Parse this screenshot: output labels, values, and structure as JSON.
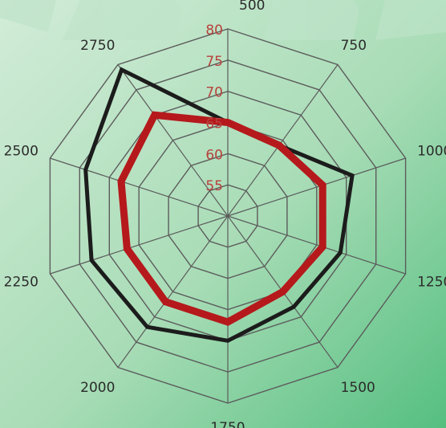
{
  "chart_data": {
    "type": "radar",
    "categories": [
      "500",
      "750",
      "1000",
      "1250",
      "1500",
      "1750",
      "2000",
      "2250",
      "2500",
      "2750"
    ],
    "rlim": [
      50,
      80
    ],
    "ring_ticks": [
      55,
      60,
      65,
      70,
      75,
      80
    ],
    "series": [
      {
        "color": "#1c1c1c",
        "values": [
          65,
          64,
          71,
          69,
          68,
          70,
          72,
          73,
          74,
          79
        ]
      },
      {
        "color": "#b5191c",
        "values": [
          65,
          64,
          66,
          66,
          65,
          67,
          67,
          67,
          68,
          70
        ]
      }
    ],
    "grid": true,
    "legend": "none"
  },
  "colors": {
    "grid": "#5c5c5c",
    "background_start": "#b9e0c4",
    "background_end": "#4fbe7d"
  }
}
